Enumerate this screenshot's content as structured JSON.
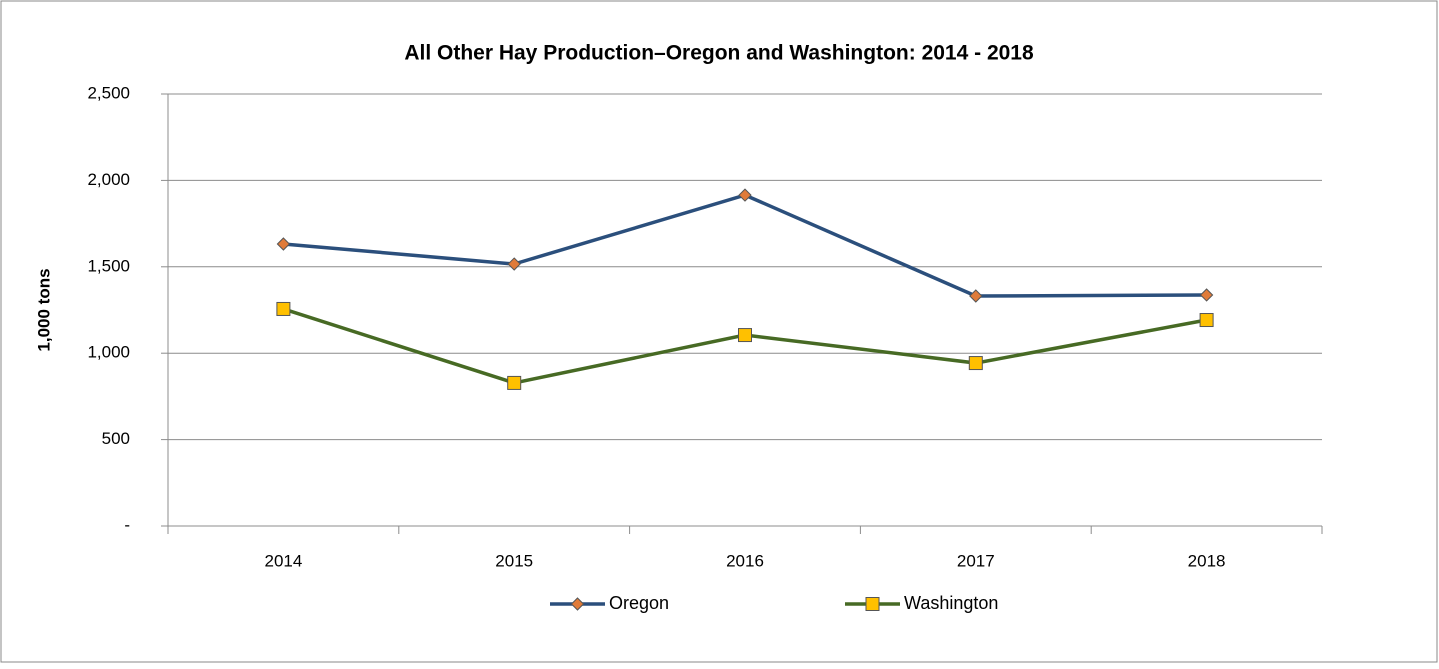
{
  "chart_data": {
    "type": "line",
    "title": "All Other Hay Production–Oregon and Washington: 2014 - 2018",
    "y_label": "1,000 tons",
    "categories": [
      "2014",
      "2015",
      "2016",
      "2017",
      "2018"
    ],
    "series": [
      {
        "name": "Oregon",
        "color": "#2b4f7c",
        "marker": "diamond",
        "marker_color": "#e07b39",
        "values": [
          1632,
          1516,
          1915,
          1331,
          1337
        ]
      },
      {
        "name": "Washington",
        "color": "#476a24",
        "marker": "square",
        "marker_color": "#ffc000",
        "values": [
          1256,
          828,
          1105,
          943,
          1192
        ]
      }
    ],
    "ylim": [
      0,
      2500
    ],
    "yticks": [
      {
        "value": 0,
        "label": "-"
      },
      500,
      {
        "value": 1000,
        "label": "1,000"
      },
      {
        "value": 1500,
        "label": "1,500"
      },
      {
        "value": 2000,
        "label": "2,000"
      },
      {
        "value": 2500,
        "label": "2,500"
      }
    ],
    "grid": true,
    "legend": "bottom"
  }
}
